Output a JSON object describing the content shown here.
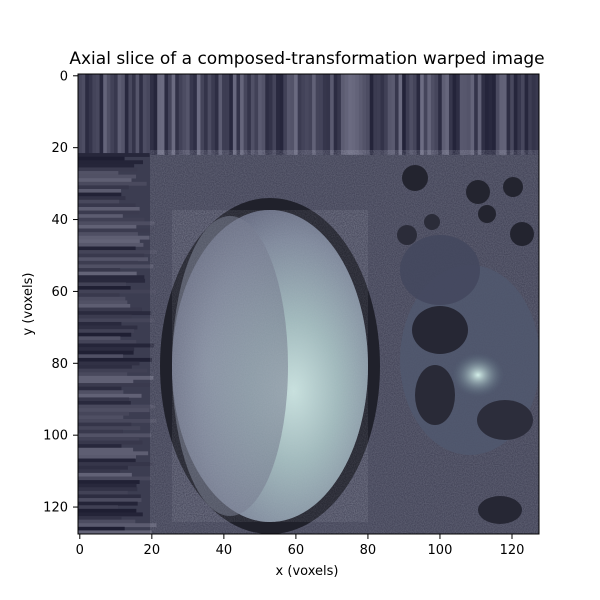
{
  "figure": {
    "title": "Axial slice of  a composed-transformation warped image",
    "xlabel": "x (voxels)",
    "ylabel": "y (voxels)",
    "xlim": [
      0,
      127
    ],
    "ylim": [
      127,
      0
    ],
    "x_ticks": [
      "0",
      "20",
      "40",
      "60",
      "80",
      "100",
      "120"
    ],
    "y_ticks": [
      "0",
      "20",
      "40",
      "60",
      "80",
      "100",
      "120"
    ],
    "x_tick_values": [
      0,
      20,
      40,
      60,
      80,
      100,
      120
    ],
    "y_tick_values": [
      0,
      20,
      40,
      60,
      80,
      100,
      120
    ],
    "colormap": "bone",
    "colors": {
      "dark": "#1c1c26",
      "mid": "#4f5068",
      "light": "#b9d4d3"
    },
    "image_description_elements": {
      "streak_region_y_max": 22,
      "central_blob_center": [
        60,
        77
      ],
      "central_blob_radii": [
        27,
        43
      ]
    }
  }
}
